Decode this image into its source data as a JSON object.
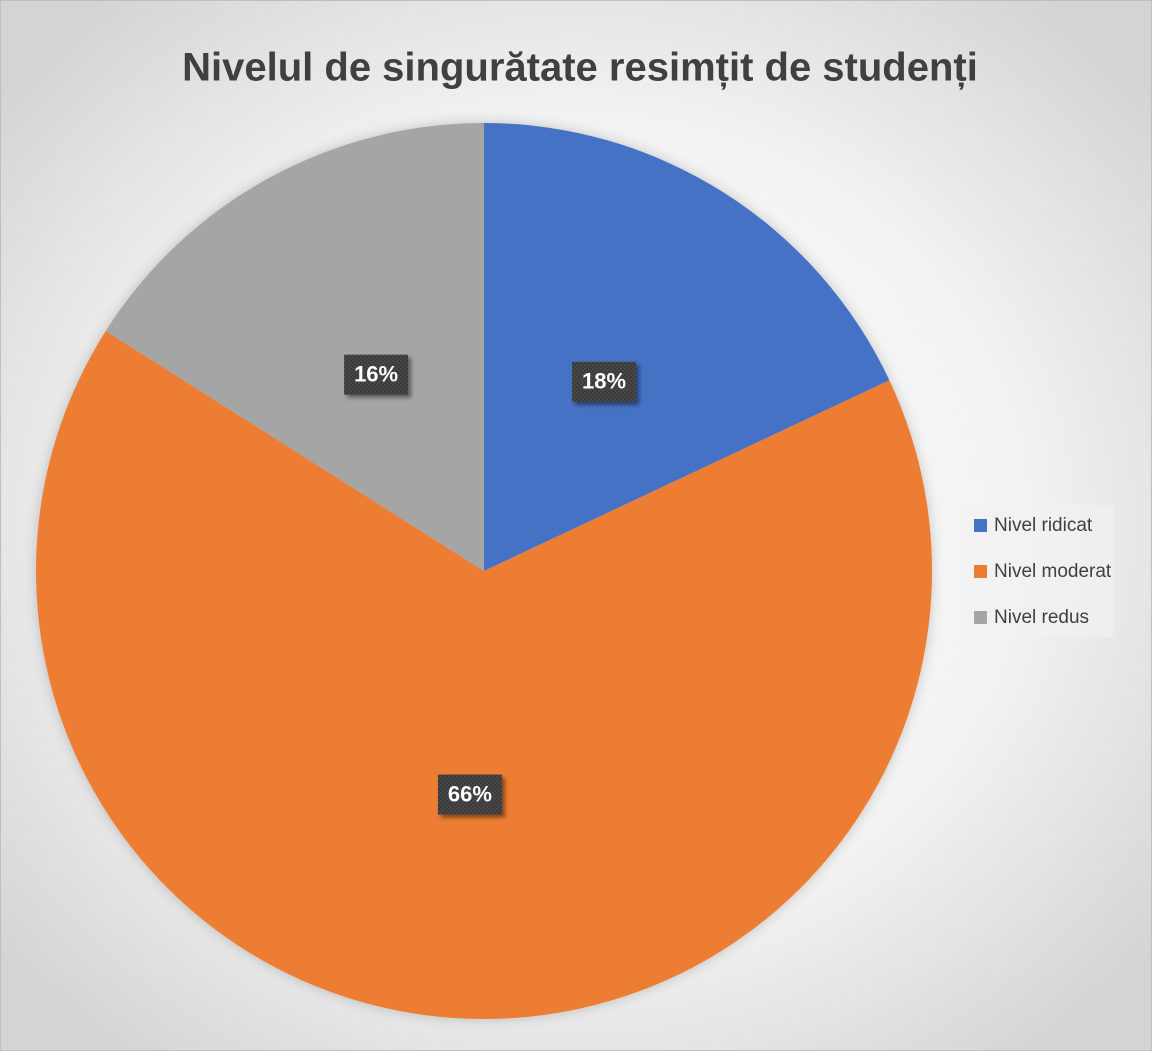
{
  "chart_data": {
    "type": "pie",
    "title": "Nivelul de singurătate resimțit de studenți",
    "categories": [
      "Nivel ridicat",
      "Nivel moderat",
      "Nivel redus"
    ],
    "values": [
      18,
      66,
      16
    ],
    "value_labels": [
      "18%",
      "66%",
      "16%"
    ],
    "colors": [
      "#4472c4",
      "#ed7d31",
      "#a5a5a5"
    ],
    "legend": "right"
  }
}
